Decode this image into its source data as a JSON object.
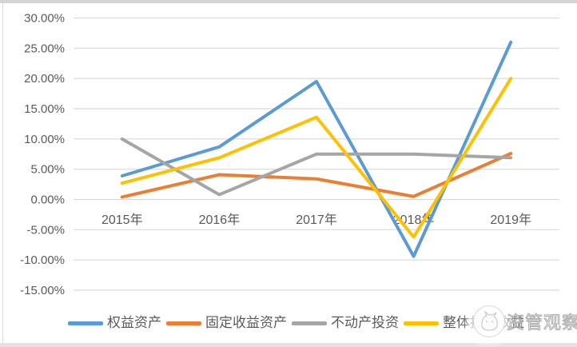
{
  "chart_data": {
    "type": "line",
    "categories": [
      "2015年",
      "2016年",
      "2017年",
      "2018年",
      "2019年"
    ],
    "series": [
      {
        "id": "equity-assets",
        "name": "权益资产",
        "color": "#5B9BD5",
        "values": [
          3.9,
          8.7,
          19.5,
          -9.4,
          26.0
        ]
      },
      {
        "id": "fixed-income",
        "name": "固定收益资产",
        "color": "#ED7D31",
        "values": [
          0.4,
          4.1,
          3.4,
          0.5,
          7.6
        ]
      },
      {
        "id": "real-estate",
        "name": "不动产投资",
        "color": "#A5A5A5",
        "values": [
          10.0,
          0.8,
          7.5,
          7.5,
          6.9
        ]
      },
      {
        "id": "overall-return",
        "name": "整体投资收益",
        "color": "#FFC000",
        "values": [
          2.7,
          6.9,
          13.6,
          -6.2,
          20.0
        ]
      }
    ],
    "y_axis": {
      "min": -15,
      "max": 30,
      "step": 5,
      "tick_labels": [
        "30.00%",
        "25.00%",
        "20.00%",
        "15.00%",
        "10.00%",
        "5.00%",
        "0.00%",
        "-5.00%",
        "-10.00%",
        "-15.00%"
      ]
    },
    "grid": true,
    "legend_position": "bottom",
    "line_width": 4
  },
  "watermark": {
    "logo": "cat-logo",
    "text": "资管观察"
  },
  "colors": {
    "gridline": "#D9D9D9",
    "axis_text": "#595959",
    "top_strip": "#D4D4D4",
    "bottom_strip": "#E2E2E2",
    "left_border": "#D9D9D9"
  }
}
